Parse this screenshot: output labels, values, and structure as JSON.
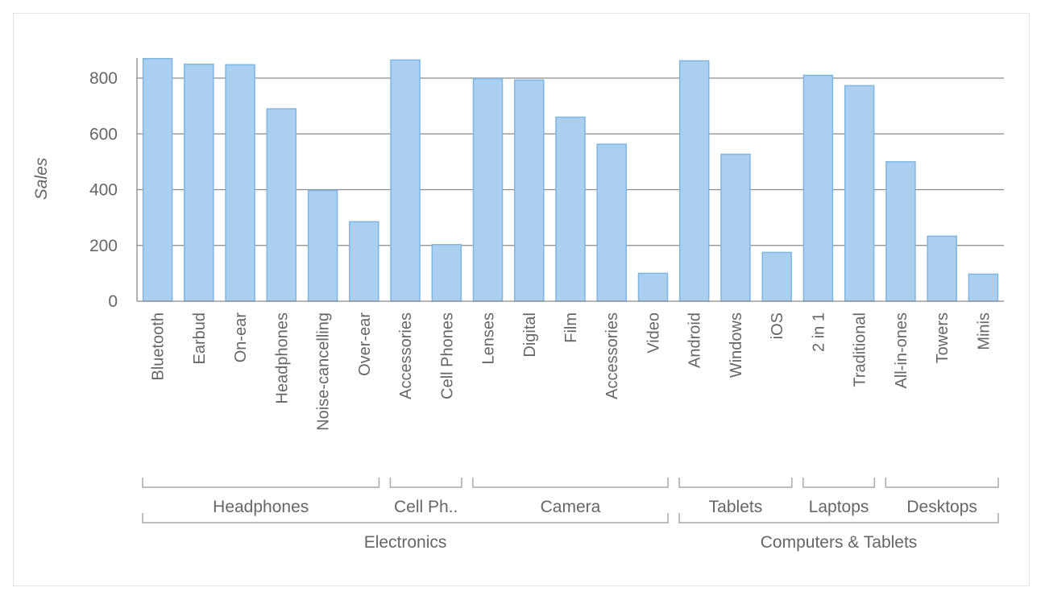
{
  "chart_data": {
    "type": "bar",
    "ylabel": "Sales",
    "ylim": [
      0,
      880
    ],
    "yticks": [
      "0",
      "200",
      "400",
      "600",
      "800"
    ],
    "grid": true,
    "colors": {
      "bar_fill": "#abd0ef",
      "bar_stroke": "#7fb5e3",
      "grid": "#8a8a8a",
      "text": "#666666"
    },
    "categories": [
      "Bluetooth",
      "Earbud",
      "On-ear",
      "Headphones",
      "Noise-cancelling",
      "Over-ear",
      "Accessories",
      "Cell Phones",
      "Lenses",
      "Digital",
      "Film",
      "Accessories",
      "Video",
      "Android",
      "Windows",
      "iOS",
      "2 in 1",
      "Traditional",
      "All-in-ones",
      "Towers",
      "Minis"
    ],
    "values": [
      870,
      850,
      848,
      690,
      397,
      285,
      865,
      203,
      798,
      793,
      660,
      563,
      100,
      862,
      527,
      175,
      810,
      773,
      500,
      233,
      97
    ],
    "groups_level1": [
      {
        "label": "Headphones",
        "start": 0,
        "end": 5
      },
      {
        "label": "Cell Ph..",
        "start": 6,
        "end": 7
      },
      {
        "label": "Camera",
        "start": 8,
        "end": 12
      },
      {
        "label": "Tablets",
        "start": 13,
        "end": 15
      },
      {
        "label": "Laptops",
        "start": 16,
        "end": 17
      },
      {
        "label": "Desktops",
        "start": 18,
        "end": 20
      }
    ],
    "groups_level2": [
      {
        "label": "Electronics",
        "start": 0,
        "end": 12
      },
      {
        "label": "Computers & Tablets",
        "start": 13,
        "end": 20
      }
    ]
  }
}
